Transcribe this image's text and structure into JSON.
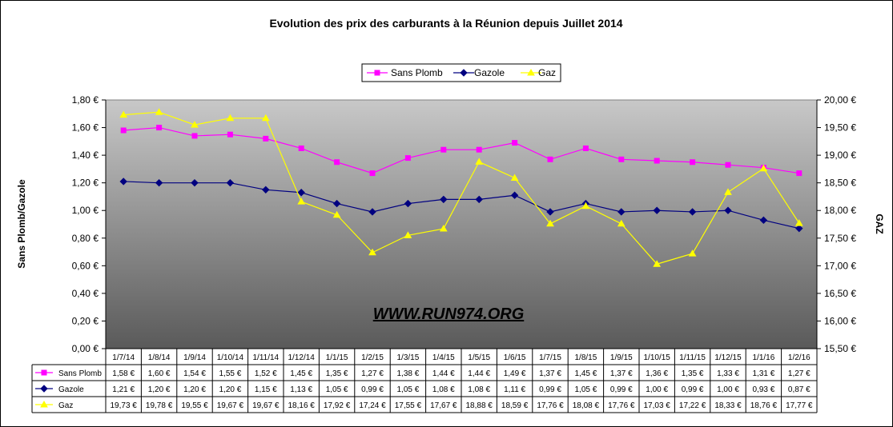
{
  "chart_data": {
    "type": "line",
    "title": "Evolution des prix des carburants à la Réunion depuis Juillet 2014",
    "ylabel_left": "Sans Plomb/Gazole",
    "ylabel_right": "GAZ",
    "categories": [
      "1/7/14",
      "1/8/14",
      "1/9/14",
      "1/10/14",
      "1/11/14",
      "1/12/14",
      "1/1/15",
      "1/2/15",
      "1/3/15",
      "1/4/15",
      "1/5/15",
      "1/6/15",
      "1/7/15",
      "1/8/15",
      "1/9/15",
      "1/10/15",
      "1/11/15",
      "1/12/15",
      "1/1/16",
      "1/2/16"
    ],
    "y_left_ticks": [
      "0,00 €",
      "0,20 €",
      "0,40 €",
      "0,60 €",
      "0,80 €",
      "1,00 €",
      "1,20 €",
      "1,40 €",
      "1,60 €",
      "1,80 €"
    ],
    "y_right_ticks": [
      "15,50 €",
      "16,00 €",
      "16,50 €",
      "17,00 €",
      "17,50 €",
      "18,00 €",
      "18,50 €",
      "19,00 €",
      "19,50 €",
      "20,00 €"
    ],
    "ylim_left": [
      0,
      1.8
    ],
    "ylim_right": [
      15.5,
      20.0
    ],
    "legend_position": "top",
    "series": [
      {
        "name": "Sans Plomb",
        "axis": "left",
        "color": "#FF00FF",
        "marker": "square",
        "values": [
          1.58,
          1.6,
          1.54,
          1.55,
          1.52,
          1.45,
          1.35,
          1.27,
          1.38,
          1.44,
          1.44,
          1.49,
          1.37,
          1.45,
          1.37,
          1.36,
          1.35,
          1.33,
          1.31,
          1.27
        ],
        "labels": [
          "1,58 €",
          "1,60 €",
          "1,54 €",
          "1,55 €",
          "1,52 €",
          "1,45 €",
          "1,35 €",
          "1,27 €",
          "1,38 €",
          "1,44 €",
          "1,44 €",
          "1,49 €",
          "1,37 €",
          "1,45 €",
          "1,37 €",
          "1,36 €",
          "1,35 €",
          "1,33 €",
          "1,31 €",
          "1,27 €"
        ]
      },
      {
        "name": "Gazole",
        "axis": "left",
        "color": "#000080",
        "marker": "diamond",
        "values": [
          1.21,
          1.2,
          1.2,
          1.2,
          1.15,
          1.13,
          1.05,
          0.99,
          1.05,
          1.08,
          1.08,
          1.11,
          0.99,
          1.05,
          0.99,
          1.0,
          0.99,
          1.0,
          0.93,
          0.87
        ],
        "labels": [
          "1,21 €",
          "1,20 €",
          "1,20 €",
          "1,20 €",
          "1,15 €",
          "1,13 €",
          "1,05 €",
          "0,99 €",
          "1,05 €",
          "1,08 €",
          "1,08 €",
          "1,11 €",
          "0,99 €",
          "1,05 €",
          "0,99 €",
          "1,00 €",
          "0,99 €",
          "1,00 €",
          "0,93 €",
          "0,87 €"
        ]
      },
      {
        "name": "Gaz",
        "axis": "right",
        "color": "#FFFF00",
        "marker": "triangle",
        "values": [
          19.73,
          19.78,
          19.55,
          19.67,
          19.67,
          18.16,
          17.92,
          17.24,
          17.55,
          17.67,
          18.88,
          18.59,
          17.76,
          18.08,
          17.76,
          17.03,
          17.22,
          18.33,
          18.76,
          17.77
        ],
        "labels": [
          "19,73 €",
          "19,78 €",
          "19,55 €",
          "19,67 €",
          "19,67 €",
          "18,16 €",
          "17,92 €",
          "17,24 €",
          "17,55 €",
          "17,67 €",
          "18,88 €",
          "18,59 €",
          "17,76 €",
          "18,08 €",
          "17,76 €",
          "17,03 €",
          "17,22 €",
          "18,33 €",
          "18,76 €",
          "17,77 €"
        ]
      }
    ],
    "watermark": "WWW.RUN974.ORG",
    "plot_background": "#808080 gradient",
    "grid": false
  }
}
